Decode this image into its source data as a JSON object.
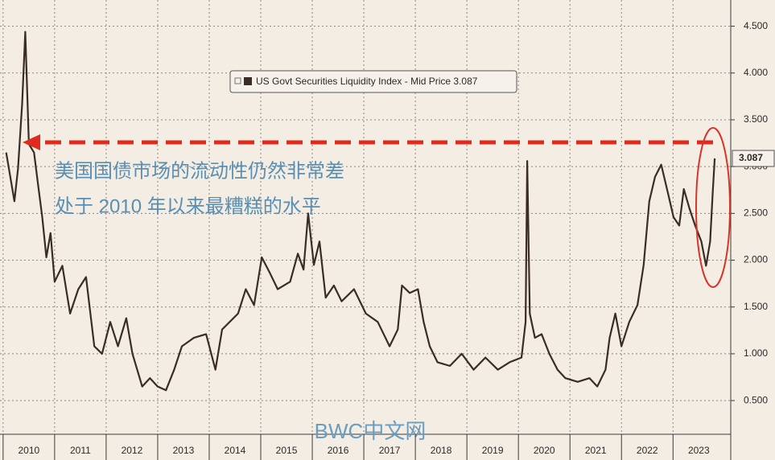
{
  "chart_data": {
    "type": "line",
    "series": [
      {
        "name": "US Govt Securities Liquidity Index - Mid Price 3.087",
        "color": "#3a2d27",
        "x": [
          2010.06,
          2010.22,
          2010.29,
          2010.37,
          2010.43,
          2010.5,
          2010.6,
          2010.68,
          2010.76,
          2010.84,
          2010.92,
          2011.0,
          2011.15,
          2011.3,
          2011.46,
          2011.61,
          2011.77,
          2011.92,
          2012.08,
          2012.23,
          2012.39,
          2012.51,
          2012.7,
          2012.85,
          2013.0,
          2013.16,
          2013.32,
          2013.47,
          2013.7,
          2013.94,
          2014.12,
          2014.25,
          2014.56,
          2014.71,
          2014.87,
          2015.02,
          2015.18,
          2015.33,
          2015.57,
          2015.72,
          2015.83,
          2015.92,
          2016.03,
          2016.14,
          2016.26,
          2016.42,
          2016.57,
          2016.81,
          2017.04,
          2017.27,
          2017.5,
          2017.66,
          2017.74,
          2017.89,
          2018.05,
          2018.16,
          2018.28,
          2018.43,
          2018.67,
          2018.9,
          2019.13,
          2019.36,
          2019.6,
          2019.83,
          2020.06,
          2020.14,
          2020.17,
          2020.22,
          2020.32,
          2020.45,
          2020.6,
          2020.76,
          2020.91,
          2021.15,
          2021.38,
          2021.53,
          2021.69,
          2021.77,
          2021.88,
          2022.0,
          2022.15,
          2022.31,
          2022.43,
          2022.54,
          2022.65,
          2022.77,
          2022.9,
          2023.01,
          2023.12,
          2023.21,
          2023.32,
          2023.43,
          2023.55,
          2023.64,
          2023.72,
          2023.77,
          2023.81
        ],
        "values": [
          3.15,
          2.63,
          2.98,
          3.67,
          4.44,
          3.24,
          3.15,
          2.8,
          2.46,
          2.03,
          2.29,
          1.77,
          1.94,
          1.43,
          1.69,
          1.82,
          1.08,
          1.0,
          1.34,
          1.08,
          1.38,
          1.0,
          0.65,
          0.74,
          0.65,
          0.61,
          0.83,
          1.08,
          1.17,
          1.21,
          0.83,
          1.26,
          1.43,
          1.69,
          1.52,
          2.03,
          1.86,
          1.69,
          1.77,
          2.07,
          1.9,
          2.5,
          1.95,
          2.2,
          1.6,
          1.73,
          1.56,
          1.69,
          1.43,
          1.34,
          1.08,
          1.26,
          1.73,
          1.65,
          1.69,
          1.34,
          1.08,
          0.91,
          0.87,
          1.0,
          0.83,
          0.96,
          0.83,
          0.91,
          0.96,
          1.34,
          3.06,
          1.43,
          1.17,
          1.21,
          1.0,
          0.83,
          0.74,
          0.7,
          0.74,
          0.65,
          0.83,
          1.17,
          1.43,
          1.08,
          1.34,
          1.52,
          1.95,
          2.63,
          2.89,
          3.02,
          2.72,
          2.46,
          2.37,
          2.76,
          2.55,
          2.37,
          2.2,
          1.94,
          2.2,
          2.72,
          3.087
        ]
      }
    ],
    "xlim": [
      2009.94,
      2024.12
    ],
    "xticks": [
      {
        "value": 2010,
        "label": "2010"
      },
      {
        "value": 2011,
        "label": "2011"
      },
      {
        "value": 2012,
        "label": "2012"
      },
      {
        "value": 2013,
        "label": "2013"
      },
      {
        "value": 2014,
        "label": "2014"
      },
      {
        "value": 2015,
        "label": "2015"
      },
      {
        "value": 2016,
        "label": "2016"
      },
      {
        "value": 2017,
        "label": "2017"
      },
      {
        "value": 2018,
        "label": "2018"
      },
      {
        "value": 2019,
        "label": "2019"
      },
      {
        "value": 2020,
        "label": "2020"
      },
      {
        "value": 2021,
        "label": "2021"
      },
      {
        "value": 2022,
        "label": "2022"
      },
      {
        "value": 2023,
        "label": "2023"
      }
    ],
    "ylim": [
      0.14,
      4.78
    ],
    "yticks": [
      {
        "value": 0.5,
        "label": "0.500"
      },
      {
        "value": 1,
        "label": "1.000"
      },
      {
        "value": 1.5,
        "label": "1.500"
      },
      {
        "value": 2,
        "label": "2.000"
      },
      {
        "value": 2.5,
        "label": "2.500"
      },
      {
        "value": 3,
        "label": "3.000"
      },
      {
        "value": 3.5,
        "label": "3.500"
      },
      {
        "value": 4,
        "label": "4.000"
      },
      {
        "value": 4.5,
        "label": "4.500"
      }
    ],
    "grid": true,
    "annotations": [
      "美国国债市场的流动性仍然非常差",
      "处于 2010 年以来最糟糕的水平"
    ],
    "watermark": "BWC中文网"
  }
}
